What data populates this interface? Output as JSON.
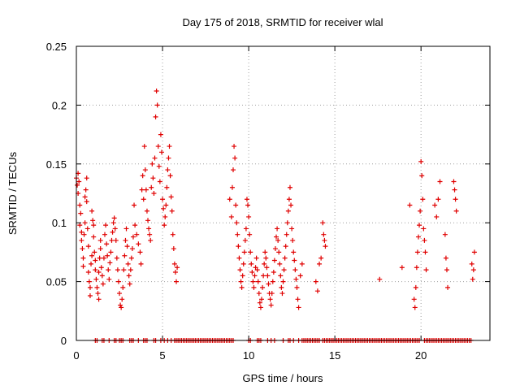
{
  "chart_data": {
    "type": "scatter",
    "title": "Day 175 of 2018, SRMTID for receiver wlal",
    "xlabel": "GPS time / hours",
    "ylabel": "SRMTID / TECUs",
    "xlim": [
      0,
      24
    ],
    "ylim": [
      0,
      0.25
    ],
    "x_ticks": [
      0,
      5,
      10,
      15,
      20
    ],
    "x_tick_labels": [
      "0",
      "5",
      "10",
      "15",
      "20"
    ],
    "y_ticks": [
      0,
      0.05,
      0.1,
      0.15,
      0.2,
      0.25
    ],
    "y_tick_labels": [
      "0",
      "0.05",
      "0.1",
      "0.15",
      "0.2",
      "0.25"
    ],
    "grid": true,
    "marker": "+",
    "color": "#e00000",
    "series": [
      {
        "name": "SRMTID",
        "points": [
          [
            0.0,
            0.138
          ],
          [
            0.05,
            0.132
          ],
          [
            0.1,
            0.125
          ],
          [
            0.1,
            0.142
          ],
          [
            0.15,
            0.135
          ],
          [
            0.2,
            0.115
          ],
          [
            0.2,
            0.098
          ],
          [
            0.25,
            0.108
          ],
          [
            0.3,
            0.092
          ],
          [
            0.3,
            0.085
          ],
          [
            0.35,
            0.078
          ],
          [
            0.4,
            0.07
          ],
          [
            0.4,
            0.063
          ],
          [
            0.45,
            0.09
          ],
          [
            0.5,
            0.122
          ],
          [
            0.5,
            0.1
          ],
          [
            0.55,
            0.128
          ],
          [
            0.6,
            0.138
          ],
          [
            0.6,
            0.118
          ],
          [
            0.65,
            0.095
          ],
          [
            0.7,
            0.08
          ],
          [
            0.7,
            0.058
          ],
          [
            0.75,
            0.05
          ],
          [
            0.8,
            0.045
          ],
          [
            0.8,
            0.038
          ],
          [
            0.85,
            0.065
          ],
          [
            0.9,
            0.072
          ],
          [
            0.9,
            0.11
          ],
          [
            0.95,
            0.102
          ],
          [
            1.0,
            0.098
          ],
          [
            1.0,
            0.088
          ],
          [
            1.05,
            0.075
          ],
          [
            1.1,
            0.068
          ],
          [
            1.1,
            0.06
          ],
          [
            1.15,
            0.052
          ],
          [
            1.2,
            0.045
          ],
          [
            1.25,
            0.04
          ],
          [
            1.3,
            0.035
          ],
          [
            1.3,
            0.058
          ],
          [
            1.35,
            0.07
          ],
          [
            1.4,
            0.078
          ],
          [
            1.4,
            0.085
          ],
          [
            1.45,
            0.062
          ],
          [
            1.5,
            0.055
          ],
          [
            1.55,
            0.048
          ],
          [
            1.6,
            0.07
          ],
          [
            1.65,
            0.09
          ],
          [
            1.7,
            0.098
          ],
          [
            1.75,
            0.082
          ],
          [
            1.8,
            0.072
          ],
          [
            1.85,
            0.06
          ],
          [
            1.9,
            0.052
          ],
          [
            1.95,
            0.066
          ],
          [
            2.0,
            0.075
          ],
          [
            2.05,
            0.085
          ],
          [
            2.1,
            0.092
          ],
          [
            2.15,
            0.1
          ],
          [
            2.2,
            0.104
          ],
          [
            2.25,
            0.095
          ],
          [
            2.3,
            0.085
          ],
          [
            2.35,
            0.07
          ],
          [
            2.4,
            0.06
          ],
          [
            2.45,
            0.05
          ],
          [
            2.5,
            0.04
          ],
          [
            2.55,
            0.03
          ],
          [
            2.6,
            0.028
          ],
          [
            2.65,
            0.035
          ],
          [
            2.7,
            0.045
          ],
          [
            2.75,
            0.06
          ],
          [
            2.8,
            0.072
          ],
          [
            2.85,
            0.085
          ],
          [
            2.9,
            0.095
          ],
          [
            2.95,
            0.08
          ],
          [
            3.0,
            0.065
          ],
          [
            3.05,
            0.055
          ],
          [
            3.1,
            0.048
          ],
          [
            3.15,
            0.06
          ],
          [
            3.2,
            0.07
          ],
          [
            3.25,
            0.078
          ],
          [
            3.3,
            0.088
          ],
          [
            3.35,
            0.115
          ],
          [
            3.4,
            0.098
          ],
          [
            3.5,
            0.09
          ],
          [
            3.6,
            0.082
          ],
          [
            3.7,
            0.075
          ],
          [
            3.75,
            0.065
          ],
          [
            3.8,
            0.128
          ],
          [
            3.85,
            0.14
          ],
          [
            3.9,
            0.12
          ],
          [
            3.95,
            0.165
          ],
          [
            4.0,
            0.145
          ],
          [
            4.05,
            0.128
          ],
          [
            4.1,
            0.11
          ],
          [
            4.15,
            0.102
          ],
          [
            4.2,
            0.095
          ],
          [
            4.25,
            0.09
          ],
          [
            4.3,
            0.085
          ],
          [
            4.35,
            0.13
          ],
          [
            4.4,
            0.15
          ],
          [
            4.45,
            0.138
          ],
          [
            4.5,
            0.125
          ],
          [
            4.55,
            0.155
          ],
          [
            4.6,
            0.19
          ],
          [
            4.65,
            0.212
          ],
          [
            4.7,
            0.2
          ],
          [
            4.75,
            0.165
          ],
          [
            4.8,
            0.148
          ],
          [
            4.85,
            0.135
          ],
          [
            4.9,
            0.175
          ],
          [
            4.95,
            0.16
          ],
          [
            5.0,
            0.12
          ],
          [
            5.05,
            0.112
          ],
          [
            5.1,
            0.098
          ],
          [
            5.15,
            0.105
          ],
          [
            5.2,
            0.115
          ],
          [
            5.25,
            0.13
          ],
          [
            5.3,
            0.145
          ],
          [
            5.35,
            0.155
          ],
          [
            5.4,
            0.165
          ],
          [
            5.45,
            0.14
          ],
          [
            5.5,
            0.122
          ],
          [
            5.55,
            0.11
          ],
          [
            5.6,
            0.09
          ],
          [
            5.65,
            0.078
          ],
          [
            5.7,
            0.065
          ],
          [
            5.75,
            0.058
          ],
          [
            5.8,
            0.05
          ],
          [
            5.85,
            0.062
          ],
          [
            8.9,
            0.12
          ],
          [
            9.0,
            0.105
          ],
          [
            9.05,
            0.13
          ],
          [
            9.1,
            0.145
          ],
          [
            9.15,
            0.165
          ],
          [
            9.2,
            0.155
          ],
          [
            9.25,
            0.115
          ],
          [
            9.3,
            0.1
          ],
          [
            9.35,
            0.09
          ],
          [
            9.4,
            0.08
          ],
          [
            9.45,
            0.07
          ],
          [
            9.5,
            0.06
          ],
          [
            9.55,
            0.05
          ],
          [
            9.6,
            0.045
          ],
          [
            9.65,
            0.055
          ],
          [
            9.7,
            0.065
          ],
          [
            9.75,
            0.075
          ],
          [
            9.8,
            0.085
          ],
          [
            9.85,
            0.095
          ],
          [
            9.9,
            0.12
          ],
          [
            9.95,
            0.115
          ],
          [
            10.0,
            0.105
          ],
          [
            10.05,
            0.09
          ],
          [
            10.1,
            0.075
          ],
          [
            10.15,
            0.065
          ],
          [
            10.2,
            0.058
          ],
          [
            10.25,
            0.05
          ],
          [
            10.3,
            0.045
          ],
          [
            10.35,
            0.055
          ],
          [
            10.4,
            0.062
          ],
          [
            10.45,
            0.07
          ],
          [
            10.5,
            0.06
          ],
          [
            10.55,
            0.05
          ],
          [
            10.6,
            0.04
          ],
          [
            10.65,
            0.032
          ],
          [
            10.7,
            0.028
          ],
          [
            10.75,
            0.035
          ],
          [
            10.8,
            0.045
          ],
          [
            10.85,
            0.055
          ],
          [
            10.9,
            0.065
          ],
          [
            10.95,
            0.075
          ],
          [
            11.0,
            0.07
          ],
          [
            11.05,
            0.062
          ],
          [
            11.1,
            0.055
          ],
          [
            11.15,
            0.048
          ],
          [
            11.2,
            0.04
          ],
          [
            11.25,
            0.035
          ],
          [
            11.3,
            0.03
          ],
          [
            11.35,
            0.04
          ],
          [
            11.4,
            0.05
          ],
          [
            11.45,
            0.058
          ],
          [
            11.5,
            0.068
          ],
          [
            11.55,
            0.078
          ],
          [
            11.6,
            0.088
          ],
          [
            11.65,
            0.095
          ],
          [
            11.7,
            0.085
          ],
          [
            11.75,
            0.075
          ],
          [
            11.8,
            0.065
          ],
          [
            11.85,
            0.055
          ],
          [
            11.9,
            0.045
          ],
          [
            11.95,
            0.04
          ],
          [
            12.0,
            0.05
          ],
          [
            12.05,
            0.06
          ],
          [
            12.1,
            0.07
          ],
          [
            12.15,
            0.08
          ],
          [
            12.2,
            0.09
          ],
          [
            12.25,
            0.1
          ],
          [
            12.3,
            0.11
          ],
          [
            12.35,
            0.12
          ],
          [
            12.4,
            0.13
          ],
          [
            12.45,
            0.115
          ],
          [
            12.5,
            0.095
          ],
          [
            12.55,
            0.085
          ],
          [
            12.6,
            0.075
          ],
          [
            12.65,
            0.068
          ],
          [
            12.7,
            0.06
          ],
          [
            12.75,
            0.052
          ],
          [
            12.8,
            0.045
          ],
          [
            12.85,
            0.035
          ],
          [
            12.9,
            0.028
          ],
          [
            13.0,
            0.055
          ],
          [
            13.1,
            0.065
          ],
          [
            13.9,
            0.05
          ],
          [
            14.0,
            0.042
          ],
          [
            14.1,
            0.065
          ],
          [
            14.2,
            0.07
          ],
          [
            14.3,
            0.1
          ],
          [
            14.35,
            0.09
          ],
          [
            14.4,
            0.085
          ],
          [
            14.45,
            0.08
          ],
          [
            17.6,
            0.052
          ],
          [
            18.9,
            0.062
          ],
          [
            19.35,
            0.115
          ],
          [
            19.6,
            0.035
          ],
          [
            19.65,
            0.028
          ],
          [
            19.7,
            0.045
          ],
          [
            19.75,
            0.062
          ],
          [
            19.8,
            0.075
          ],
          [
            19.85,
            0.088
          ],
          [
            19.9,
            0.098
          ],
          [
            19.95,
            0.11
          ],
          [
            20.0,
            0.152
          ],
          [
            20.05,
            0.14
          ],
          [
            20.1,
            0.12
          ],
          [
            20.15,
            0.095
          ],
          [
            20.2,
            0.085
          ],
          [
            20.25,
            0.075
          ],
          [
            20.3,
            0.06
          ],
          [
            20.8,
            0.115
          ],
          [
            20.9,
            0.105
          ],
          [
            21.0,
            0.12
          ],
          [
            21.1,
            0.135
          ],
          [
            21.4,
            0.09
          ],
          [
            21.45,
            0.07
          ],
          [
            21.5,
            0.06
          ],
          [
            21.55,
            0.045
          ],
          [
            21.9,
            0.135
          ],
          [
            21.95,
            0.128
          ],
          [
            22.0,
            0.12
          ],
          [
            22.05,
            0.11
          ],
          [
            22.95,
            0.065
          ],
          [
            23.0,
            0.052
          ],
          [
            23.05,
            0.06
          ],
          [
            23.1,
            0.075
          ]
        ],
        "zero_points_x": [
          1.1,
          1.2,
          1.5,
          1.6,
          1.9,
          2.2,
          2.3,
          2.5,
          2.6,
          2.7,
          3.1,
          3.2,
          3.3,
          3.6,
          3.9,
          4.0,
          4.1,
          4.5,
          4.6,
          4.9,
          5.1,
          5.3,
          5.5,
          5.7,
          5.8,
          5.9,
          6.0,
          6.1,
          6.2,
          6.3,
          6.4,
          6.5,
          6.6,
          6.7,
          6.8,
          6.9,
          7.0,
          7.1,
          7.2,
          7.3,
          7.4,
          7.5,
          7.6,
          7.7,
          7.8,
          7.9,
          8.0,
          8.1,
          8.2,
          8.3,
          8.4,
          8.5,
          8.6,
          8.7,
          8.8,
          8.9,
          9.0,
          9.1,
          10.0,
          10.1,
          10.5,
          10.6,
          10.7,
          11.1,
          11.3,
          11.5,
          12.0,
          12.3,
          12.4,
          12.6,
          12.9,
          13.1,
          13.2,
          13.3,
          13.4,
          13.5,
          13.6,
          13.7,
          13.8,
          13.9,
          14.0,
          14.1,
          14.3,
          14.4,
          14.5,
          14.6,
          14.7,
          14.8,
          14.9,
          15.0,
          15.1,
          15.2,
          15.3,
          15.4,
          15.5,
          15.6,
          15.7,
          15.8,
          15.9,
          16.0,
          16.1,
          16.2,
          16.3,
          16.4,
          16.5,
          16.6,
          16.7,
          16.8,
          16.9,
          17.0,
          17.1,
          17.2,
          17.3,
          17.4,
          17.5,
          17.6,
          17.7,
          17.8,
          17.9,
          18.0,
          18.1,
          18.2,
          18.3,
          18.4,
          18.5,
          18.6,
          18.7,
          18.8,
          18.9,
          19.0,
          19.1,
          19.2,
          19.3,
          19.4,
          19.5,
          19.6,
          19.7,
          19.8,
          19.9,
          20.2,
          20.3,
          20.4,
          20.5,
          20.6,
          20.7,
          20.8,
          20.9,
          21.0,
          21.1,
          21.2,
          21.3,
          21.4,
          21.5,
          21.6,
          21.7,
          21.8,
          21.9,
          22.0,
          22.1,
          22.2,
          22.3,
          22.4,
          22.5,
          22.6,
          22.7,
          22.8,
          22.9
        ]
      }
    ]
  }
}
